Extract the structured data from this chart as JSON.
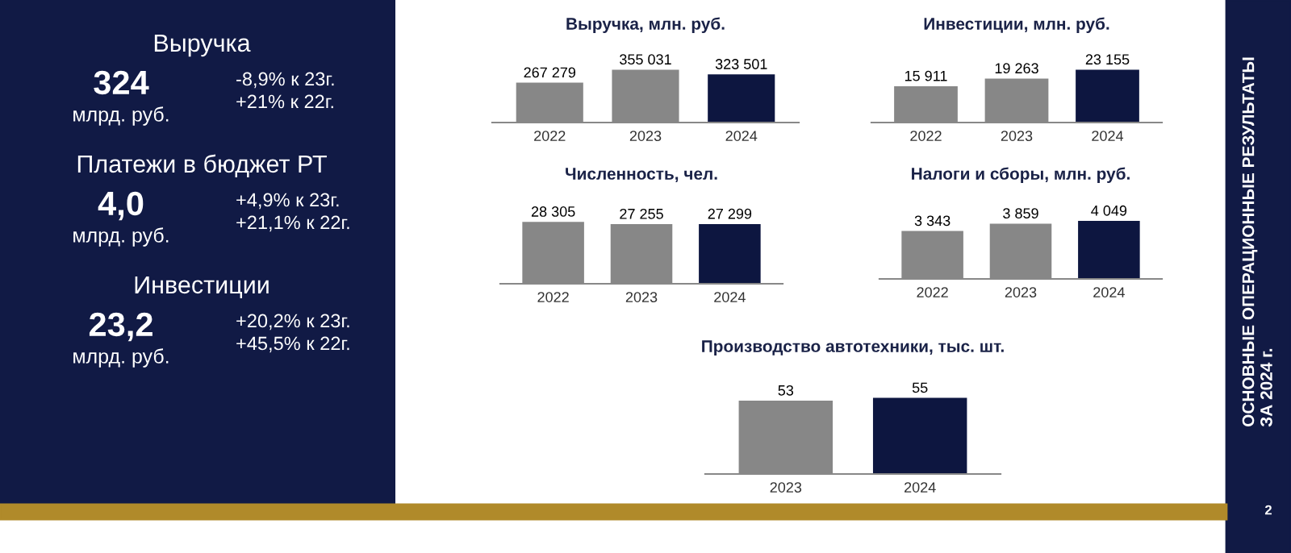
{
  "chart_data": [
    {
      "type": "other",
      "annotations": [
        "Выручка",
        "324",
        "млрд. руб.",
        "-8,9% к 23г.",
        "+21% к 22г.",
        "Платежи в бюджет РТ",
        "4,0",
        "млрд. руб.",
        "+4,9% к 23г.",
        "+21,1% к 22г.",
        "Инвестиции",
        "23,2",
        "млрд. руб.",
        "+20,2% к 23г.",
        "+45,5% к 22г.",
        "ОСНОВНЫЕ ОПЕРАЦИОННЫЕ РЕЗУЛЬТАТЫ\nЗА 2024 г.",
        "2"
      ]
    },
    {
      "type": "bar",
      "title": "Выручка, млн. руб.",
      "categories": [
        "2022",
        "2023",
        "2024"
      ],
      "values": [
        267279,
        355031,
        323501
      ],
      "value_labels": [
        "267 279",
        "355 031",
        "323 501"
      ],
      "colors": [
        "#878787",
        "#878787",
        "#0d1640"
      ],
      "tick_labels": "x"
    },
    {
      "type": "bar",
      "title": "Инвестиции, млн. руб.",
      "categories": [
        "2022",
        "2023",
        "2024"
      ],
      "values": [
        15911,
        19263,
        23155
      ],
      "value_labels": [
        "15 911",
        "19 263",
        "23 155"
      ],
      "colors": [
        "#878787",
        "#878787",
        "#0d1640"
      ],
      "tick_labels": "x"
    },
    {
      "type": "bar",
      "title": "Численность, чел.",
      "categories": [
        "2022",
        "2023",
        "2024"
      ],
      "values": [
        28305,
        27255,
        27299
      ],
      "value_labels": [
        "28 305",
        "27 255",
        "27 299"
      ],
      "colors": [
        "#878787",
        "#878787",
        "#0d1640"
      ],
      "tick_labels": "x"
    },
    {
      "type": "bar",
      "title": "Налоги и сборы, млн. руб.",
      "categories": [
        "2022",
        "2023",
        "2024"
      ],
      "values": [
        3343,
        3859,
        4049
      ],
      "value_labels": [
        "3 343",
        "3 859",
        "4 049"
      ],
      "colors": [
        "#878787",
        "#878787",
        "#0d1640"
      ],
      "tick_labels": "x"
    },
    {
      "type": "bar",
      "title": "Производство автотехники, тыс. шт.",
      "categories": [
        "2023",
        "2024"
      ],
      "values": [
        53,
        55
      ],
      "value_labels": [
        "53",
        "55"
      ],
      "colors": [
        "#878787",
        "#0d1640"
      ],
      "tick_labels": "x"
    }
  ]
}
